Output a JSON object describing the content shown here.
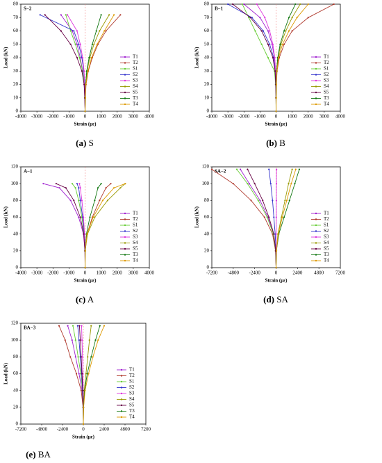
{
  "chart_data": [
    {
      "type": "line",
      "title": "S−2",
      "caption_tag": "(a)",
      "caption": "S",
      "xlabel": "Strain (με)",
      "ylabel": "Load (kN)",
      "xlim": [
        -4000,
        4000
      ],
      "xticks": [
        -4000,
        -3000,
        -2000,
        -1000,
        0,
        1000,
        2000,
        3000,
        4000
      ],
      "ylim": [
        0,
        80
      ],
      "yticks": [
        0,
        10,
        20,
        30,
        40,
        50,
        60,
        70,
        80
      ],
      "y": [
        0,
        10,
        20,
        30,
        40,
        50,
        60,
        72
      ],
      "series": [
        {
          "name": "T1",
          "color": "#a020d0",
          "x": [
            0,
            -20,
            -50,
            -150,
            -300,
            -500,
            -800,
            -1500
          ]
        },
        {
          "name": "T2",
          "color": "#b03a2e",
          "x": [
            0,
            20,
            60,
            200,
            450,
            800,
            1300,
            2200
          ]
        },
        {
          "name": "S1",
          "color": "#66cc33",
          "x": [
            0,
            -10,
            -40,
            -150,
            -350,
            -600,
            -900,
            -1200
          ]
        },
        {
          "name": "S2",
          "color": "#3333cc",
          "x": [
            0,
            -10,
            -30,
            -80,
            -200,
            -400,
            -700,
            -2800
          ]
        },
        {
          "name": "S3",
          "color": "#dd33dd",
          "x": [
            0,
            -5,
            -20,
            -60,
            -150,
            -300,
            -500,
            -1100
          ]
        },
        {
          "name": "S4",
          "color": "#999900",
          "x": [
            0,
            10,
            40,
            120,
            300,
            550,
            900,
            1500
          ]
        },
        {
          "name": "S5",
          "color": "#660044",
          "x": [
            0,
            -20,
            -60,
            -200,
            -500,
            -900,
            -1500,
            -2500
          ]
        },
        {
          "name": "T3",
          "color": "#117711",
          "x": [
            0,
            10,
            30,
            100,
            250,
            450,
            700,
            1000
          ]
        },
        {
          "name": "T4",
          "color": "#dd9900",
          "x": [
            0,
            15,
            50,
            180,
            400,
            750,
            1200,
            1800
          ]
        }
      ]
    },
    {
      "type": "line",
      "title": "B−1",
      "caption_tag": "(b)",
      "caption": "B",
      "xlabel": "Strain (με)",
      "ylabel": "Load (kN)",
      "xlim": [
        -4000,
        4000
      ],
      "xticks": [
        -4000,
        -3000,
        -2000,
        -1000,
        0,
        1000,
        2000,
        3000,
        4000
      ],
      "ylim": [
        0,
        80
      ],
      "yticks": [
        0,
        10,
        20,
        30,
        40,
        50,
        60,
        70,
        80
      ],
      "y": [
        0,
        10,
        20,
        30,
        40,
        50,
        60,
        70,
        80
      ],
      "series": [
        {
          "name": "T1",
          "color": "#a020d0",
          "x": [
            0,
            -5,
            -10,
            -30,
            -100,
            -250,
            -500,
            -1000,
            -2000
          ]
        },
        {
          "name": "T2",
          "color": "#b03a2e",
          "x": [
            0,
            5,
            20,
            60,
            200,
            500,
            1000,
            2000,
            3600
          ]
        },
        {
          "name": "S1",
          "color": "#66cc33",
          "x": [
            0,
            -10,
            -30,
            -100,
            -500,
            -900,
            -1300,
            -1700,
            -2100
          ]
        },
        {
          "name": "S2",
          "color": "#3333cc",
          "x": [
            0,
            -5,
            -15,
            -50,
            -150,
            -400,
            -800,
            -1500,
            -3000
          ]
        },
        {
          "name": "S3",
          "color": "#dd33dd",
          "x": [
            0,
            -5,
            -10,
            -30,
            -80,
            -200,
            -400,
            -700,
            -1200
          ]
        },
        {
          "name": "S4",
          "color": "#999900",
          "x": [
            0,
            5,
            15,
            40,
            120,
            300,
            600,
            1000,
            1500
          ]
        },
        {
          "name": "S5",
          "color": "#660044",
          "x": [
            0,
            -5,
            -20,
            -60,
            -200,
            -500,
            -900,
            -1600,
            -2700
          ]
        },
        {
          "name": "T3",
          "color": "#117711",
          "x": [
            0,
            5,
            10,
            30,
            100,
            250,
            500,
            800,
            1200
          ]
        },
        {
          "name": "T4",
          "color": "#dd9900",
          "x": [
            0,
            5,
            20,
            50,
            150,
            400,
            800,
            1300,
            2000
          ]
        }
      ]
    },
    {
      "type": "line",
      "title": "A−1",
      "caption_tag": "(c)",
      "caption": "A",
      "xlabel": "Strain (με)",
      "ylabel": "Load (kN)",
      "xlim": [
        -4000,
        4000
      ],
      "xticks": [
        -4000,
        -3000,
        -2000,
        -1000,
        0,
        1000,
        2000,
        3000,
        4000
      ],
      "ylim": [
        0,
        120
      ],
      "yticks": [
        0,
        20,
        40,
        60,
        80,
        100,
        120
      ],
      "y": [
        0,
        20,
        40,
        60,
        80,
        95,
        100
      ],
      "series": [
        {
          "name": "T1",
          "color": "#a020d0",
          "x": [
            0,
            -10,
            -100,
            -400,
            -900,
            -1600,
            -2600
          ]
        },
        {
          "name": "T2",
          "color": "#b03a2e",
          "x": [
            0,
            10,
            120,
            450,
            900,
            1300,
            1600
          ]
        },
        {
          "name": "S1",
          "color": "#66cc33",
          "x": [
            0,
            -5,
            -60,
            -200,
            -400,
            -600,
            -800
          ]
        },
        {
          "name": "S2",
          "color": "#3333cc",
          "x": [
            0,
            -5,
            -40,
            -150,
            -300,
            -400,
            -500
          ]
        },
        {
          "name": "S3",
          "color": "#dd33dd",
          "x": [
            0,
            -5,
            -30,
            -100,
            -200,
            -300,
            -350
          ]
        },
        {
          "name": "S4",
          "color": "#999900",
          "x": [
            0,
            10,
            150,
            600,
            1400,
            2200,
            2500
          ]
        },
        {
          "name": "S5",
          "color": "#660044",
          "x": [
            0,
            -10,
            -80,
            -300,
            -700,
            -1200,
            -1800
          ]
        },
        {
          "name": "T3",
          "color": "#117711",
          "x": [
            0,
            5,
            80,
            300,
            600,
            800,
            1000
          ]
        },
        {
          "name": "T4",
          "color": "#dd9900",
          "x": [
            0,
            10,
            120,
            500,
            1100,
            1800,
            2500
          ]
        }
      ]
    },
    {
      "type": "line",
      "title": "SA−2",
      "caption_tag": "(d)",
      "caption": "SA",
      "xlabel": "Strain (με)",
      "ylabel": "Load (kN)",
      "xlim": [
        -7200,
        7200
      ],
      "xticks": [
        -7200,
        -4800,
        -2400,
        0,
        2400,
        4800,
        7200
      ],
      "ylim": [
        0,
        120
      ],
      "yticks": [
        0,
        20,
        40,
        60,
        80,
        100,
        120
      ],
      "y": [
        0,
        20,
        40,
        60,
        80,
        100,
        117
      ],
      "series": [
        {
          "name": "T1",
          "color": "#a020d0",
          "x": [
            0,
            -50,
            -300,
            -900,
            -1800,
            -3000,
            -4000
          ]
        },
        {
          "name": "T2",
          "color": "#b03a2e",
          "x": [
            0,
            -60,
            -400,
            -1300,
            -2800,
            -4800,
            -7200
          ]
        },
        {
          "name": "S1",
          "color": "#66cc33",
          "x": [
            0,
            -50,
            -300,
            -1000,
            -2000,
            -3200,
            -4400
          ]
        },
        {
          "name": "S2",
          "color": "#3333cc",
          "x": [
            0,
            -10,
            -100,
            -250,
            -400,
            -600,
            -800
          ]
        },
        {
          "name": "S3",
          "color": "#dd33dd",
          "x": [
            0,
            0,
            10,
            20,
            30,
            40,
            50
          ]
        },
        {
          "name": "S4",
          "color": "#999900",
          "x": [
            0,
            30,
            200,
            600,
            1000,
            1400,
            1800
          ]
        },
        {
          "name": "S5",
          "color": "#660044",
          "x": [
            0,
            -40,
            -250,
            -800,
            -1500,
            -2400,
            -3200
          ]
        },
        {
          "name": "T3",
          "color": "#117711",
          "x": [
            0,
            40,
            300,
            900,
            1500,
            2100,
            2600
          ]
        },
        {
          "name": "T4",
          "color": "#dd9900",
          "x": [
            0,
            40,
            250,
            700,
            1200,
            1700,
            2200
          ]
        }
      ]
    },
    {
      "type": "line",
      "title": "BA−3",
      "caption_tag": "(e)",
      "caption": "BA",
      "xlabel": "Strain (με)",
      "ylabel": "Load (kN)",
      "xlim": [
        -7200,
        7200
      ],
      "xticks": [
        -7200,
        -4800,
        -2400,
        0,
        2400,
        4800,
        7200
      ],
      "ylim": [
        0,
        120
      ],
      "yticks": [
        0,
        20,
        40,
        60,
        80,
        100,
        120
      ],
      "y": [
        0,
        20,
        40,
        60,
        80,
        100,
        117
      ],
      "series": [
        {
          "name": "T1",
          "color": "#a020d0",
          "x": [
            0,
            -20,
            -150,
            -500,
            -900,
            -1300,
            -1800
          ]
        },
        {
          "name": "T2",
          "color": "#b03a2e",
          "x": [
            0,
            -30,
            -250,
            -800,
            -1500,
            -2100,
            -2800
          ]
        },
        {
          "name": "S1",
          "color": "#66cc33",
          "x": [
            0,
            -20,
            -100,
            -300,
            -600,
            -900,
            -1200
          ]
        },
        {
          "name": "S2",
          "color": "#3333cc",
          "x": [
            0,
            -10,
            -80,
            -200,
            -350,
            -500,
            -650
          ]
        },
        {
          "name": "S3",
          "color": "#dd33dd",
          "x": [
            0,
            0,
            -20,
            -50,
            -100,
            -150,
            -200
          ]
        },
        {
          "name": "S4",
          "color": "#999900",
          "x": [
            0,
            20,
            100,
            300,
            500,
            700,
            900
          ]
        },
        {
          "name": "S5",
          "color": "#660044",
          "x": [
            0,
            -10,
            -50,
            -150,
            -250,
            -350,
            -450
          ]
        },
        {
          "name": "T3",
          "color": "#117711",
          "x": [
            0,
            20,
            150,
            450,
            900,
            1400,
            1900
          ]
        },
        {
          "name": "T4",
          "color": "#dd9900",
          "x": [
            0,
            30,
            200,
            600,
            1100,
            1700,
            2400
          ]
        }
      ]
    }
  ]
}
